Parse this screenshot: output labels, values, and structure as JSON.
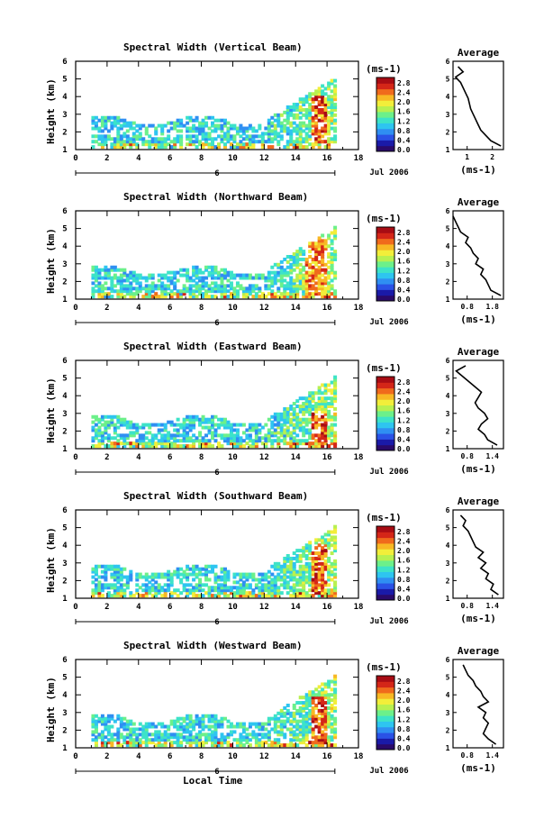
{
  "figure": {
    "x_axis_label": "Local Time",
    "date_label": "Jul 2006",
    "y_axis_label": "Height (km)",
    "colorbar_unit": "(ms-1)",
    "colorbar_ticks": [
      "2.8",
      "2.4",
      "2.0",
      "1.6",
      "1.2",
      "0.8",
      "0.4",
      "0.0"
    ],
    "colormap": [
      "#2a0a6a",
      "#1a1aa8",
      "#2a52e6",
      "#2f8ff2",
      "#2ec5f0",
      "#3de3c8",
      "#6cf08a",
      "#b8f050",
      "#f2ee3a",
      "#f8b824",
      "#f06a1c",
      "#d42618",
      "#a80c14"
    ],
    "average_title": "Average",
    "average_unit": "(ms-1)"
  },
  "chart_data": [
    {
      "type": "heatmap",
      "title": "Spectral Width (Vertical Beam)",
      "xlabel": "Local Time",
      "ylabel": "Height (km)",
      "xlim": [
        0,
        18
      ],
      "ylim": [
        1,
        6
      ],
      "x_ticks": [
        "0",
        "2",
        "4",
        "6",
        "8",
        "10",
        "12",
        "14",
        "16",
        "18"
      ],
      "secondary_x_tick": "6",
      "y_ticks": [
        "1",
        "2",
        "3",
        "4",
        "5",
        "6"
      ],
      "colorbar_range": [
        0.0,
        2.8
      ],
      "data_coverage_hours": [
        1.0,
        16.5
      ],
      "peak_region": {
        "x": [
          14.8,
          15.8
        ],
        "y": [
          1.4,
          4.0
        ],
        "value": 2.6
      },
      "average_profile": {
        "title": "Average",
        "xlabel": "(ms-1)",
        "xlim": [
          0.5,
          2.5
        ],
        "x_ticks": [
          "1",
          "2"
        ],
        "ylim": [
          1,
          6
        ],
        "y_ticks": [
          "1",
          "2",
          "3",
          "4",
          "5",
          "6"
        ],
        "height": [
          1.2,
          1.5,
          1.8,
          2.1,
          2.4,
          2.7,
          3.0,
          3.3,
          3.6,
          3.9,
          4.2,
          4.5,
          4.8,
          5.1,
          5.4,
          5.7
        ],
        "width": [
          2.4,
          2.0,
          1.8,
          1.6,
          1.5,
          1.4,
          1.3,
          1.2,
          1.15,
          1.1,
          1.0,
          0.9,
          0.8,
          0.6,
          0.9,
          0.7
        ]
      }
    },
    {
      "type": "heatmap",
      "title": "Spectral Width (Northward Beam)",
      "xlabel": "Local Time",
      "ylabel": "Height (km)",
      "xlim": [
        0,
        18
      ],
      "ylim": [
        1,
        6
      ],
      "x_ticks": [
        "0",
        "2",
        "4",
        "6",
        "8",
        "10",
        "12",
        "14",
        "16",
        "18"
      ],
      "secondary_x_tick": "6",
      "y_ticks": [
        "1",
        "2",
        "3",
        "4",
        "5",
        "6"
      ],
      "colorbar_range": [
        0.0,
        2.8
      ],
      "data_coverage_hours": [
        1.0,
        16.5
      ],
      "peak_region": {
        "x": [
          14.5,
          15.8
        ],
        "y": [
          1.4,
          4.5
        ],
        "value": 2.4
      },
      "average_profile": {
        "title": "Average",
        "xlabel": "(ms-1)",
        "xlim": [
          0.8,
          1.8
        ],
        "x_ticks": [
          "0.8",
          "1.8"
        ],
        "ylim": [
          1,
          6
        ],
        "y_ticks": [
          "1",
          "2",
          "3",
          "4",
          "5",
          "6"
        ],
        "height": [
          1.2,
          1.5,
          1.8,
          2.1,
          2.4,
          2.7,
          3.0,
          3.3,
          3.6,
          3.9,
          4.2,
          4.5,
          4.8,
          5.1,
          5.4,
          5.7
        ],
        "width": [
          1.75,
          1.55,
          1.5,
          1.45,
          1.35,
          1.4,
          1.25,
          1.3,
          1.2,
          1.15,
          1.05,
          1.1,
          0.95,
          0.9,
          0.85,
          0.8
        ]
      }
    },
    {
      "type": "heatmap",
      "title": "Spectral Width (Eastward Beam)",
      "xlabel": "Local Time",
      "ylabel": "Height (km)",
      "xlim": [
        0,
        18
      ],
      "ylim": [
        1,
        6
      ],
      "x_ticks": [
        "0",
        "2",
        "4",
        "6",
        "8",
        "10",
        "12",
        "14",
        "16",
        "18"
      ],
      "secondary_x_tick": "6",
      "y_ticks": [
        "1",
        "2",
        "3",
        "4",
        "5",
        "6"
      ],
      "colorbar_range": [
        0.0,
        2.8
      ],
      "data_coverage_hours": [
        1.0,
        16.5
      ],
      "peak_region": {
        "x": [
          14.8,
          15.8
        ],
        "y": [
          1.4,
          3.0
        ],
        "value": 2.6
      },
      "average_profile": {
        "title": "Average",
        "xlabel": "(ms-1)",
        "xlim": [
          0.8,
          1.6
        ],
        "x_ticks": [
          "0.8",
          "1.4"
        ],
        "ylim": [
          1,
          6
        ],
        "y_ticks": [
          "1",
          "2",
          "3",
          "4",
          "5",
          "6"
        ],
        "height": [
          1.2,
          1.5,
          1.8,
          2.1,
          2.4,
          2.7,
          3.0,
          3.3,
          3.6,
          3.9,
          4.2,
          4.5,
          4.8,
          5.1,
          5.4,
          5.7
        ],
        "width": [
          1.5,
          1.35,
          1.3,
          1.2,
          1.25,
          1.35,
          1.3,
          1.2,
          1.15,
          1.2,
          1.25,
          1.15,
          1.05,
          0.95,
          0.85,
          1.0
        ]
      }
    },
    {
      "type": "heatmap",
      "title": "Spectral Width (Southward Beam)",
      "xlabel": "Local Time",
      "ylabel": "Height (km)",
      "xlim": [
        0,
        18
      ],
      "ylim": [
        1,
        6
      ],
      "x_ticks": [
        "0",
        "2",
        "4",
        "6",
        "8",
        "10",
        "12",
        "14",
        "16",
        "18"
      ],
      "secondary_x_tick": "6",
      "y_ticks": [
        "1",
        "2",
        "3",
        "4",
        "5",
        "6"
      ],
      "colorbar_range": [
        0.0,
        2.8
      ],
      "data_coverage_hours": [
        1.0,
        16.5
      ],
      "peak_region": {
        "x": [
          14.8,
          15.8
        ],
        "y": [
          1.4,
          4.0
        ],
        "value": 2.6
      },
      "average_profile": {
        "title": "Average",
        "xlabel": "(ms-1)",
        "xlim": [
          0.6,
          1.6
        ],
        "x_ticks": [
          "0.8",
          "1.4"
        ],
        "ylim": [
          1,
          6
        ],
        "y_ticks": [
          "1",
          "2",
          "3",
          "4",
          "5",
          "6"
        ],
        "height": [
          1.2,
          1.5,
          1.8,
          2.1,
          2.4,
          2.7,
          3.0,
          3.3,
          3.6,
          3.9,
          4.2,
          4.5,
          4.8,
          5.1,
          5.4,
          5.7
        ],
        "width": [
          1.5,
          1.35,
          1.4,
          1.25,
          1.3,
          1.15,
          1.25,
          1.1,
          1.2,
          1.05,
          1.0,
          0.95,
          0.9,
          0.8,
          0.85,
          0.75
        ]
      }
    },
    {
      "type": "heatmap",
      "title": "Spectral Width (Westward Beam)",
      "xlabel": "Local Time",
      "ylabel": "Height (km)",
      "xlim": [
        0,
        18
      ],
      "ylim": [
        1,
        6
      ],
      "x_ticks": [
        "0",
        "2",
        "4",
        "6",
        "8",
        "10",
        "12",
        "14",
        "16",
        "18"
      ],
      "secondary_x_tick": "6",
      "y_ticks": [
        "1",
        "2",
        "3",
        "4",
        "5",
        "6"
      ],
      "colorbar_range": [
        0.0,
        2.8
      ],
      "data_coverage_hours": [
        1.0,
        16.5
      ],
      "peak_region": {
        "x": [
          14.8,
          15.8
        ],
        "y": [
          1.4,
          3.8
        ],
        "value": 2.6
      },
      "average_profile": {
        "title": "Average",
        "xlabel": "(ms-1)",
        "xlim": [
          0.6,
          1.6
        ],
        "x_ticks": [
          "0.8",
          "1.4"
        ],
        "ylim": [
          1,
          6
        ],
        "y_ticks": [
          "1",
          "2",
          "3",
          "4",
          "5",
          "6"
        ],
        "height": [
          1.2,
          1.5,
          1.8,
          2.1,
          2.4,
          2.7,
          3.0,
          3.3,
          3.6,
          3.9,
          4.2,
          4.5,
          4.8,
          5.1,
          5.4,
          5.7
        ],
        "width": [
          1.45,
          1.3,
          1.2,
          1.25,
          1.3,
          1.2,
          1.25,
          1.1,
          1.3,
          1.2,
          1.15,
          1.05,
          1.0,
          0.9,
          0.85,
          0.8
        ]
      }
    }
  ]
}
